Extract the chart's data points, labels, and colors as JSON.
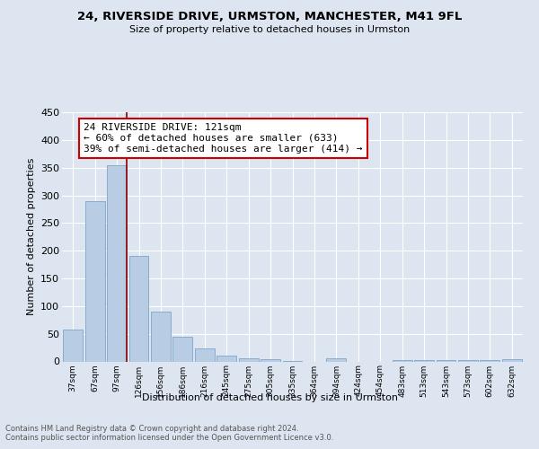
{
  "title": "24, RIVERSIDE DRIVE, URMSTON, MANCHESTER, M41 9FL",
  "subtitle": "Size of property relative to detached houses in Urmston",
  "xlabel": "Distribution of detached houses by size in Urmston",
  "ylabel": "Number of detached properties",
  "categories": [
    "37sqm",
    "67sqm",
    "97sqm",
    "126sqm",
    "156sqm",
    "186sqm",
    "216sqm",
    "245sqm",
    "275sqm",
    "305sqm",
    "335sqm",
    "364sqm",
    "394sqm",
    "424sqm",
    "454sqm",
    "483sqm",
    "513sqm",
    "543sqm",
    "573sqm",
    "602sqm",
    "632sqm"
  ],
  "values": [
    57,
    290,
    355,
    190,
    90,
    45,
    23,
    10,
    5,
    4,
    1,
    0,
    6,
    0,
    0,
    3,
    3,
    3,
    3,
    3,
    4
  ],
  "bar_color": "#b8cce4",
  "bar_edge_color": "#7da6c8",
  "marker_line_color": "#8b0000",
  "annotation_text": "24 RIVERSIDE DRIVE: 121sqm\n← 60% of detached houses are smaller (633)\n39% of semi-detached houses are larger (414) →",
  "annotation_box_color": "#ffffff",
  "annotation_box_edge_color": "#cc0000",
  "footer_text": "Contains HM Land Registry data © Crown copyright and database right 2024.\nContains public sector information licensed under the Open Government Licence v3.0.",
  "background_color": "#dde5f0",
  "plot_background_color": "#dde5f0",
  "ylim": [
    0,
    450
  ],
  "yticks": [
    0,
    50,
    100,
    150,
    200,
    250,
    300,
    350,
    400,
    450
  ]
}
